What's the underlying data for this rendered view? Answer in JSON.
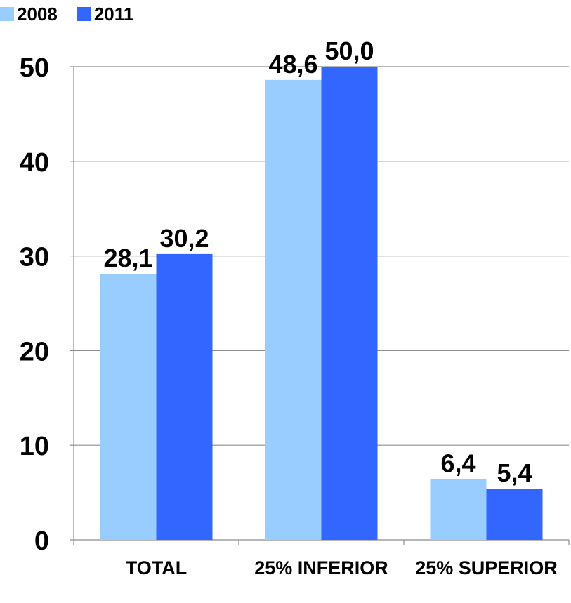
{
  "chart_data": {
    "type": "bar",
    "categories": [
      "TOTAL",
      "25% INFERIOR",
      "25% SUPERIOR"
    ],
    "series": [
      {
        "name": "2008",
        "color": "#99ccff",
        "values": [
          28.1,
          48.6,
          6.4
        ],
        "labels": [
          "28,1",
          "48,6",
          "6,4"
        ]
      },
      {
        "name": "2011",
        "color": "#3366ff",
        "values": [
          30.2,
          50.0,
          5.4
        ],
        "labels": [
          "30,2",
          "50,0",
          "5,4"
        ]
      }
    ],
    "yticks": [
      0,
      10,
      20,
      30,
      40,
      50
    ],
    "ylim": [
      0,
      50
    ],
    "grid": true,
    "legend_position": "top-left"
  }
}
